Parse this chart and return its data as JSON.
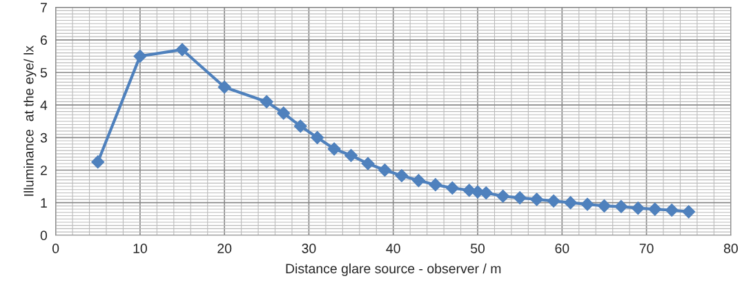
{
  "chart_data": {
    "type": "line",
    "xlabel": "Distance glare source - observer / m",
    "ylabel": "Illuminance  at the eye/ lx",
    "series": [
      {
        "color": "#4f81bd",
        "x": [
          5,
          10,
          15,
          20,
          25,
          27,
          29,
          31,
          33,
          35,
          37,
          39,
          41,
          43,
          45,
          47,
          49,
          50,
          51,
          53,
          55,
          57,
          59,
          61,
          63,
          65,
          67,
          69,
          71,
          73,
          75
        ],
        "values": [
          2.25,
          5.5,
          5.7,
          4.55,
          4.1,
          3.75,
          3.35,
          3.0,
          2.65,
          2.45,
          2.2,
          2.0,
          1.83,
          1.68,
          1.55,
          1.45,
          1.38,
          1.33,
          1.3,
          1.2,
          1.15,
          1.1,
          1.05,
          1.0,
          0.95,
          0.9,
          0.88,
          0.83,
          0.8,
          0.77,
          0.72
        ]
      }
    ],
    "xlim": [
      0,
      80
    ],
    "xticks": [
      0,
      10,
      20,
      30,
      40,
      50,
      60,
      70,
      80
    ],
    "ylim": [
      0,
      7
    ],
    "yticks": [
      0,
      1,
      2,
      3,
      4,
      5,
      6,
      7
    ],
    "grid": true,
    "marker": "diamond",
    "line_style": "solid"
  }
}
